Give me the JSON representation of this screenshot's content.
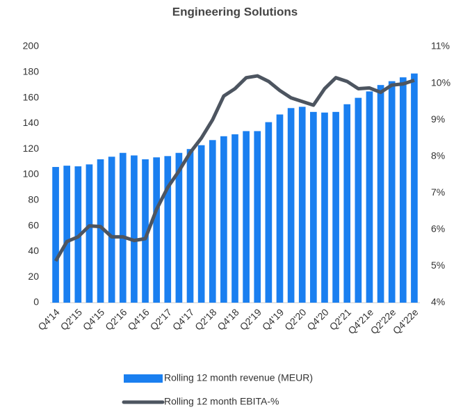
{
  "chart_data": {
    "type": "bar_line",
    "title": "Engineering Solutions",
    "categories": [
      "Q4'14",
      null,
      "Q2'15",
      null,
      "Q4'15",
      null,
      "Q2'16",
      null,
      "Q4'16",
      null,
      "Q2'17",
      null,
      "Q4'17",
      null,
      "Q2'18",
      null,
      "Q4'18",
      null,
      "Q2'19",
      null,
      "Q4'19",
      null,
      "Q2'20",
      null,
      "Q4'20",
      null,
      "Q2'21",
      null,
      "Q4'21e",
      null,
      "Q2'22e",
      null,
      "Q4'22e"
    ],
    "series": [
      {
        "name": "Rolling 12 month revenue (MEUR)",
        "type": "bar",
        "color": "#1a7ff0",
        "axis": "y",
        "values": [
          106,
          107,
          106.5,
          108,
          112,
          114,
          117,
          115,
          112,
          113.5,
          114.5,
          117,
          120,
          123,
          127,
          130,
          131.5,
          134,
          134,
          141,
          147,
          152,
          153,
          149,
          148.5,
          149,
          155,
          160,
          165,
          170,
          173,
          176,
          179
        ]
      },
      {
        "name": "Rolling 12 month EBITA-%",
        "type": "line",
        "color": "#4d5560",
        "axis": "y2",
        "values": [
          5.14,
          5.67,
          5.8,
          6.1,
          6.08,
          5.8,
          5.8,
          5.7,
          5.75,
          6.55,
          7.15,
          7.6,
          8.1,
          8.5,
          9.0,
          9.65,
          9.85,
          10.15,
          10.2,
          10.05,
          9.8,
          9.6,
          9.5,
          9.4,
          9.85,
          10.15,
          10.05,
          9.85,
          9.87,
          9.75,
          9.95,
          9.98,
          10.08
        ]
      }
    ],
    "ylim": [
      0,
      200
    ],
    "yticks": [
      0,
      20,
      40,
      60,
      80,
      100,
      120,
      140,
      160,
      180,
      200
    ],
    "y2lim": [
      4,
      11
    ],
    "y2ticks": [
      {
        "value": 4,
        "label": "4%"
      },
      {
        "value": 5,
        "label": "5%"
      },
      {
        "value": 6,
        "label": "6%"
      },
      {
        "value": 7,
        "label": "7%"
      },
      {
        "value": 8,
        "label": "8%"
      },
      {
        "value": 9,
        "label": "9%"
      },
      {
        "value": 10,
        "label": "10%"
      },
      {
        "value": 11,
        "label": "11%"
      }
    ],
    "legend": "bottom"
  }
}
